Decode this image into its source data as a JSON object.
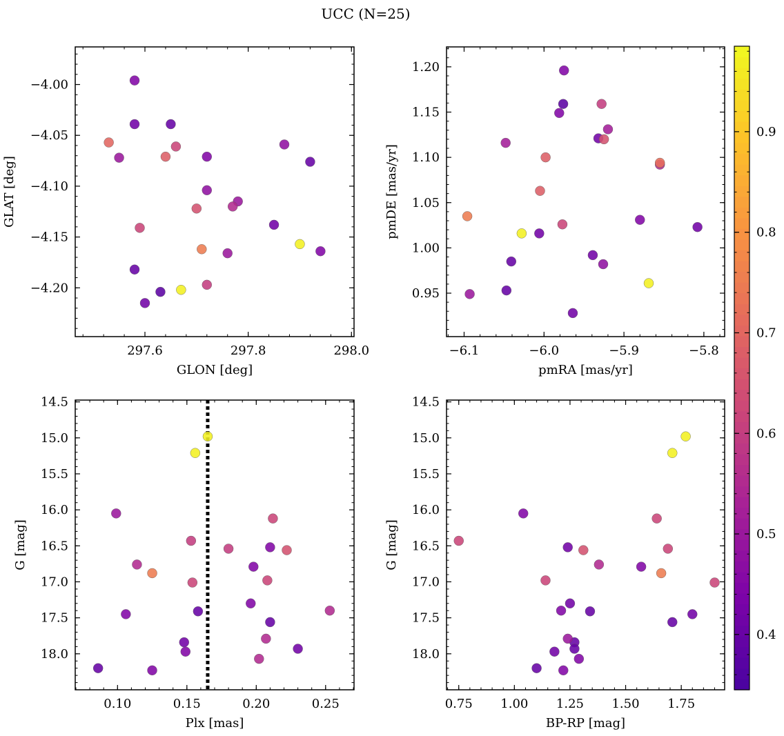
{
  "title": "UCC (N=25)",
  "colorbar": {
    "range": [
      0.345,
      0.985
    ],
    "ticks": [
      "0.4",
      "0.5",
      "0.6",
      "0.7",
      "0.8",
      "0.9"
    ],
    "colormap": "plasma"
  },
  "chart_data": [
    {
      "type": "scatter",
      "xlabel": "GLON [deg]",
      "ylabel": "GLAT [deg]",
      "xlim": [
        297.465,
        298.005
      ],
      "ylim": [
        -4.248,
        -3.963
      ],
      "xticks": [
        "297.6",
        "297.8",
        "298.0"
      ],
      "yticks": [
        "−4.00",
        "−4.05",
        "−4.10",
        "−4.15",
        "−4.20"
      ],
      "x": [
        297.58,
        297.58,
        297.53,
        297.55,
        297.65,
        297.66,
        297.64,
        297.72,
        297.87,
        297.92,
        297.72,
        297.78,
        297.77,
        297.7,
        297.59,
        297.85,
        297.71,
        297.9,
        297.94,
        297.76,
        297.58,
        297.72,
        297.67,
        297.63,
        297.6
      ],
      "y": [
        -3.996,
        -4.039,
        -4.057,
        -4.072,
        -4.039,
        -4.061,
        -4.071,
        -4.071,
        -4.059,
        -4.076,
        -4.104,
        -4.115,
        -4.12,
        -4.122,
        -4.141,
        -4.138,
        -4.162,
        -4.157,
        -4.164,
        -4.166,
        -4.182,
        -4.197,
        -4.202,
        -4.204,
        -4.215
      ],
      "c": [
        0.45,
        0.42,
        0.7,
        0.5,
        0.4,
        0.62,
        0.68,
        0.45,
        0.48,
        0.4,
        0.48,
        0.5,
        0.55,
        0.65,
        0.62,
        0.42,
        0.75,
        0.97,
        0.45,
        0.5,
        0.4,
        0.6,
        0.97,
        0.38,
        0.42
      ]
    },
    {
      "type": "scatter",
      "xlabel": "pmRA [mas/yr]",
      "ylabel": "pmDE [mas/yr]",
      "xlim": [
        -6.122,
        -5.774
      ],
      "ylim": [
        0.902,
        1.222
      ],
      "xticks": [
        "−6.1",
        "−6.0",
        "−5.9",
        "−5.8"
      ],
      "yticks": [
        "0.95",
        "1.00",
        "1.05",
        "1.10",
        "1.15",
        "1.20"
      ],
      "x": [
        -5.975,
        -5.976,
        -5.981,
        -5.928,
        -5.92,
        -5.932,
        -5.925,
        -6.048,
        -5.998,
        -5.855,
        -5.855,
        -6.005,
        -6.096,
        -5.88,
        -5.977,
        -6.028,
        -6.006,
        -5.808,
        -6.041,
        -5.939,
        -5.926,
        -5.869,
        -6.047,
        -6.093,
        -5.964
      ],
      "y": [
        1.196,
        1.159,
        1.149,
        1.159,
        1.131,
        1.121,
        1.12,
        1.116,
        1.1,
        1.094,
        1.092,
        1.063,
        1.035,
        1.031,
        1.026,
        1.016,
        1.016,
        1.023,
        0.985,
        0.992,
        0.982,
        0.961,
        0.953,
        0.949,
        0.928
      ],
      "c": [
        0.45,
        0.38,
        0.45,
        0.6,
        0.52,
        0.42,
        0.65,
        0.52,
        0.68,
        0.72,
        0.55,
        0.68,
        0.75,
        0.45,
        0.62,
        0.97,
        0.42,
        0.42,
        0.4,
        0.42,
        0.48,
        0.97,
        0.4,
        0.5,
        0.42
      ]
    },
    {
      "type": "scatter",
      "xlabel": "Plx [mas]",
      "ylabel": "G [mag]",
      "xlim": [
        0.0695,
        0.2705
      ],
      "ylim": [
        18.5,
        14.475
      ],
      "xticks": [
        "0.10",
        "0.15",
        "0.20",
        "0.25"
      ],
      "yticks": [
        "14.5",
        "15.0",
        "15.5",
        "16.0",
        "16.5",
        "17.0",
        "17.5",
        "18.0"
      ],
      "vline": 0.165,
      "x": [
        0.165,
        0.156,
        0.099,
        0.212,
        0.153,
        0.18,
        0.21,
        0.222,
        0.114,
        0.125,
        0.198,
        0.154,
        0.208,
        0.106,
        0.158,
        0.196,
        0.21,
        0.253,
        0.148,
        0.207,
        0.149,
        0.23,
        0.202,
        0.086,
        0.125
      ],
      "y": [
        14.98,
        15.21,
        16.05,
        16.12,
        16.43,
        16.54,
        16.52,
        16.56,
        16.76,
        16.88,
        16.79,
        17.01,
        16.98,
        17.45,
        17.41,
        17.3,
        17.56,
        17.4,
        17.84,
        17.79,
        17.97,
        17.93,
        18.07,
        18.2,
        18.23
      ],
      "c": [
        0.97,
        0.97,
        0.5,
        0.62,
        0.6,
        0.6,
        0.45,
        0.65,
        0.55,
        0.75,
        0.45,
        0.62,
        0.62,
        0.45,
        0.4,
        0.45,
        0.4,
        0.55,
        0.42,
        0.55,
        0.45,
        0.42,
        0.55,
        0.4,
        0.45
      ]
    },
    {
      "type": "scatter",
      "xlabel": "BP-RP [mag]",
      "ylabel": "G [mag]",
      "xlim": [
        0.695,
        1.945
      ],
      "ylim": [
        18.5,
        14.475
      ],
      "xticks": [
        "0.75",
        "1.00",
        "1.25",
        "1.50",
        "1.75"
      ],
      "yticks": [
        "14.5",
        "15.0",
        "15.5",
        "16.0",
        "16.5",
        "17.0",
        "17.5",
        "18.0"
      ],
      "x": [
        1.77,
        1.71,
        1.04,
        1.64,
        0.75,
        1.24,
        1.69,
        1.31,
        1.38,
        1.66,
        1.57,
        1.14,
        1.9,
        1.8,
        1.71,
        1.25,
        1.21,
        1.34,
        1.24,
        1.27,
        1.18,
        1.27,
        1.29,
        1.1,
        1.22
      ],
      "y": [
        14.98,
        15.21,
        16.05,
        16.12,
        16.43,
        16.52,
        16.54,
        16.56,
        16.76,
        16.88,
        16.79,
        16.98,
        17.01,
        17.45,
        17.56,
        17.3,
        17.4,
        17.41,
        17.79,
        17.84,
        17.97,
        17.93,
        18.07,
        18.2,
        18.23
      ],
      "c": [
        0.97,
        0.97,
        0.45,
        0.62,
        0.62,
        0.42,
        0.62,
        0.65,
        0.55,
        0.75,
        0.45,
        0.62,
        0.62,
        0.42,
        0.4,
        0.42,
        0.45,
        0.4,
        0.5,
        0.4,
        0.42,
        0.4,
        0.45,
        0.4,
        0.45
      ]
    }
  ]
}
